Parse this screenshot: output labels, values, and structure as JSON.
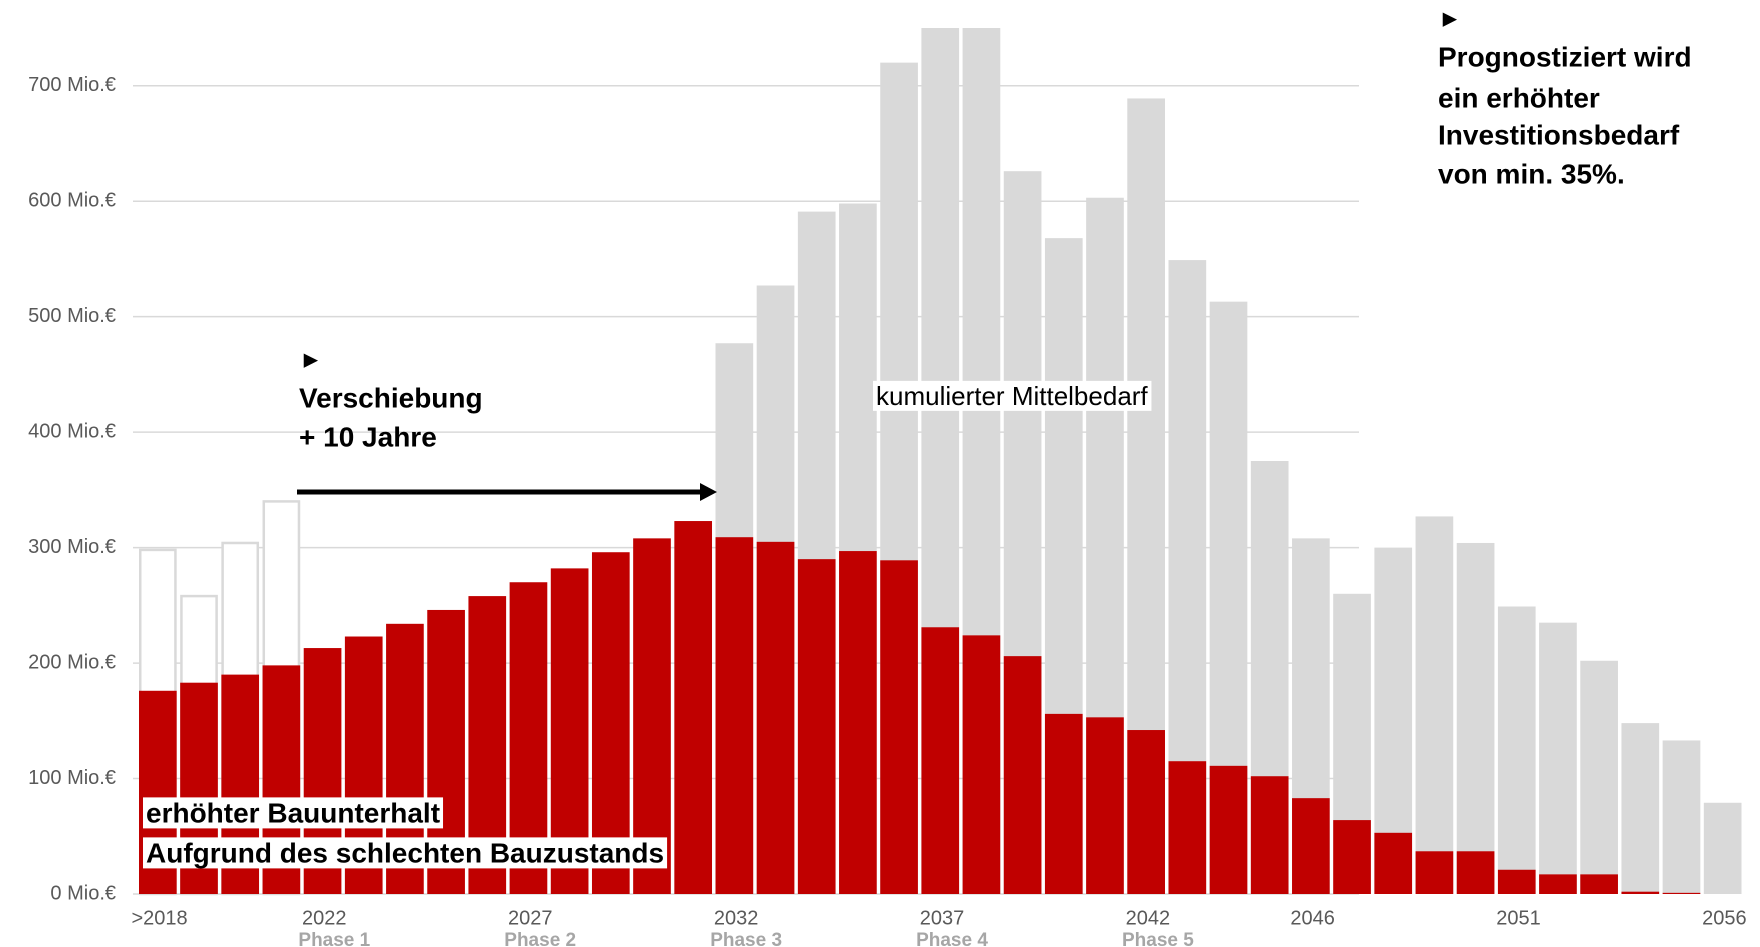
{
  "chart_data": {
    "type": "bar",
    "categories": [
      ">2018",
      null,
      null,
      null,
      "2022",
      null,
      null,
      null,
      null,
      "2027",
      null,
      null,
      null,
      null,
      "2032",
      null,
      null,
      null,
      null,
      "2037",
      null,
      null,
      null,
      null,
      "2042",
      null,
      null,
      null,
      "2046",
      null,
      null,
      null,
      null,
      "2051",
      null,
      null,
      null,
      null,
      "2056"
    ],
    "phase_labels": [
      null,
      null,
      null,
      null,
      "Phase 1",
      null,
      null,
      null,
      null,
      "Phase 2",
      null,
      null,
      null,
      null,
      "Phase 3",
      null,
      null,
      null,
      null,
      "Phase 4",
      null,
      null,
      null,
      null,
      "Phase 5",
      null,
      null,
      null,
      null,
      null,
      null,
      null,
      null,
      null,
      null,
      null,
      null,
      null,
      null
    ],
    "series": [
      {
        "name": "kumulierter Mittelbedarf",
        "color": "#d9d9d9",
        "values": [
          null,
          null,
          null,
          null,
          null,
          null,
          null,
          null,
          null,
          null,
          null,
          null,
          null,
          null,
          477,
          527,
          591,
          598,
          720,
          750,
          750,
          626,
          568,
          603,
          689,
          549,
          513,
          375,
          308,
          260,
          300,
          327,
          304,
          249,
          235,
          202,
          148,
          133,
          79
        ]
      },
      {
        "color": "#ffffff",
        "stroke": "#d9d9d9",
        "values": [
          298,
          258,
          304,
          340,
          null,
          null,
          null,
          null,
          null,
          null,
          null,
          null,
          null,
          null,
          null,
          null,
          null,
          null,
          null,
          null,
          null,
          null,
          null,
          null,
          null,
          null,
          null,
          null,
          null,
          null,
          null,
          null,
          null,
          null,
          null,
          null,
          null,
          null,
          null
        ]
      },
      {
        "name": "erhöhter Bauunterhalt",
        "color": "#c00000",
        "values": [
          176,
          183,
          190,
          198,
          213,
          223,
          234,
          246,
          258,
          270,
          282,
          296,
          308,
          323,
          309,
          305,
          290,
          297,
          289,
          231,
          224,
          206,
          156,
          153,
          142,
          115,
          111,
          102,
          83,
          64,
          53,
          37,
          37,
          21,
          17,
          17,
          2,
          1,
          0
        ]
      }
    ],
    "annotations": [
      {
        "lines": [
          "►",
          "Verschiebung",
          "+ 10 Jahre"
        ]
      },
      {
        "lines": [
          "►",
          "Prognostiziert wird",
          "ein erhöhter",
          "Investitionsbedarf",
          "von min. 35%."
        ]
      },
      {
        "lines": [
          "Aufgrund des schlechten Bauzustands"
        ]
      }
    ],
    "ylim": [
      0,
      750
    ],
    "yticks": [
      {
        "value": 0,
        "label": "0 Mio.€"
      },
      {
        "value": 100,
        "label": "100 Mio.€"
      },
      {
        "value": 200,
        "label": "200 Mio.€"
      },
      {
        "value": 300,
        "label": "300 Mio.€"
      },
      {
        "value": 400,
        "label": "400 Mio.€"
      },
      {
        "value": 500,
        "label": "500 Mio.€"
      },
      {
        "value": 600,
        "label": "600 Mio.€"
      },
      {
        "value": 700,
        "label": "700 Mio.€"
      }
    ],
    "grid": true
  }
}
